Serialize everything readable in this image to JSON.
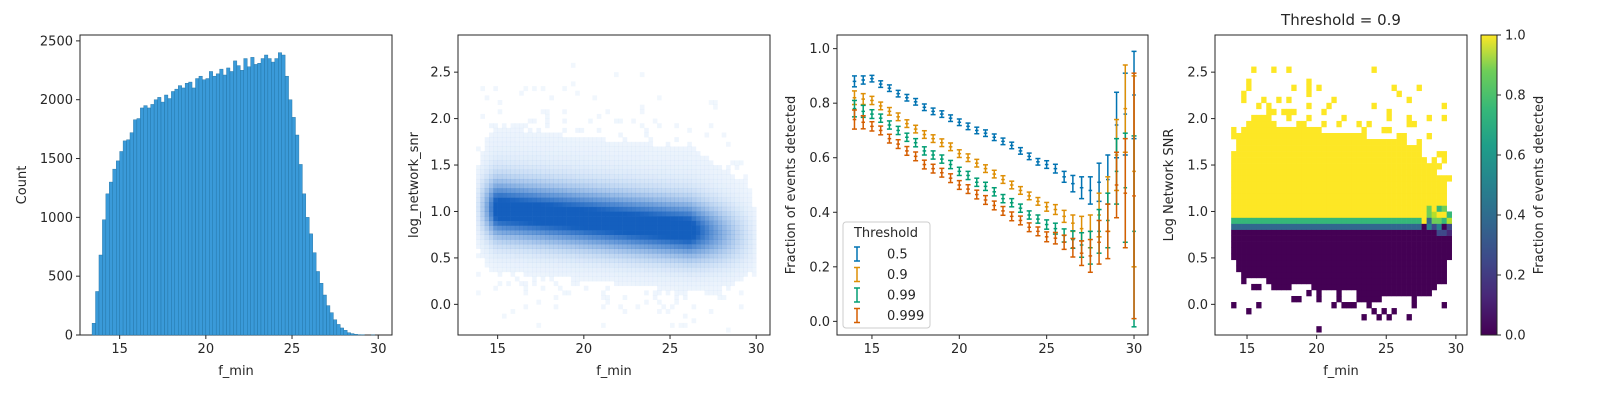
{
  "chart_data": [
    {
      "type": "bar",
      "title": "",
      "xlabel": "f_min",
      "ylabel": "Count",
      "xlim": [
        12.7,
        30.8
      ],
      "ylim": [
        0,
        2550
      ],
      "xticks": [
        15,
        20,
        25,
        30
      ],
      "yticks": [
        0,
        500,
        1000,
        1500,
        2000,
        2500
      ],
      "color": "#3a9ad9",
      "bin_width": 0.2,
      "x": [
        13.5,
        13.7,
        13.9,
        14.1,
        14.3,
        14.5,
        14.7,
        14.9,
        15.1,
        15.3,
        15.5,
        15.7,
        15.9,
        16.1,
        16.3,
        16.5,
        16.7,
        16.9,
        17.1,
        17.3,
        17.5,
        17.7,
        17.9,
        18.1,
        18.3,
        18.5,
        18.7,
        18.9,
        19.1,
        19.3,
        19.5,
        19.7,
        19.9,
        20.1,
        20.3,
        20.5,
        20.7,
        20.9,
        21.1,
        21.3,
        21.5,
        21.7,
        21.9,
        22.1,
        22.3,
        22.5,
        22.7,
        22.9,
        23.1,
        23.3,
        23.5,
        23.7,
        23.9,
        24.1,
        24.3,
        24.5,
        24.7,
        24.9,
        25.1,
        25.3,
        25.5,
        25.7,
        25.9,
        26.1,
        26.3,
        26.5,
        26.7,
        26.9,
        27.1,
        27.3,
        27.5,
        27.7,
        27.9,
        28.1,
        28.3,
        28.5,
        28.7,
        28.9,
        29.1,
        29.3,
        29.5,
        29.7,
        29.9
      ],
      "values": [
        100,
        370,
        680,
        980,
        1200,
        1300,
        1410,
        1480,
        1560,
        1650,
        1660,
        1720,
        1830,
        1840,
        1930,
        1950,
        1930,
        1960,
        2000,
        2020,
        1980,
        2040,
        2010,
        2070,
        2090,
        2120,
        2100,
        2140,
        2150,
        2100,
        2180,
        2200,
        2170,
        2180,
        2240,
        2200,
        2220,
        2260,
        2210,
        2270,
        2240,
        2330,
        2290,
        2250,
        2350,
        2280,
        2360,
        2300,
        2310,
        2350,
        2380,
        2350,
        2320,
        2350,
        2400,
        2380,
        2200,
        2000,
        1850,
        1700,
        1450,
        1200,
        1000,
        860,
        700,
        540,
        440,
        340,
        250,
        190,
        130,
        90,
        60,
        40,
        20,
        12,
        6,
        3,
        2,
        0,
        0,
        1,
        0
      ]
    },
    {
      "type": "heatmap",
      "title": "",
      "xlabel": "f_min",
      "ylabel": "log_network_snr",
      "xlim": [
        12.7,
        30.8
      ],
      "ylim": [
        -0.33,
        2.9
      ],
      "xticks": [
        15,
        20,
        25,
        30
      ],
      "yticks": [
        0.0,
        0.5,
        1.0,
        1.5,
        2.0,
        2.5
      ],
      "colormap": "light-to-dark blue",
      "density_center": [
        19.5,
        0.9
      ],
      "density_extent": {
        "f_min": [
          13.5,
          30
        ],
        "log_network_snr": [
          -0.3,
          2.9
        ]
      }
    },
    {
      "type": "line",
      "title": "",
      "xlabel": "",
      "ylabel": "Fraction of events detected",
      "xlim": [
        13.0,
        30.8
      ],
      "ylim": [
        -0.05,
        1.05
      ],
      "xticks": [
        15,
        20,
        25,
        30
      ],
      "yticks": [
        0.0,
        0.2,
        0.4,
        0.6,
        0.8,
        1.0
      ],
      "x_tick_display": [
        "15",
        "20",
        "25",
        "30"
      ],
      "legend_title": "Threshold",
      "legend_loc": "lower-left",
      "x": [
        14.0,
        14.5,
        15.0,
        15.5,
        16.0,
        16.5,
        17.0,
        17.5,
        18.0,
        18.5,
        19.0,
        19.5,
        20.0,
        20.5,
        21.0,
        21.5,
        22.0,
        22.5,
        23.0,
        23.5,
        24.0,
        24.5,
        25.0,
        25.5,
        26.0,
        26.5,
        27.0,
        27.5,
        28.0,
        28.5,
        29.0,
        29.5,
        30.0
      ],
      "series": [
        {
          "name": "0.5",
          "color": "#0173b2",
          "values": [
            0.88,
            0.885,
            0.89,
            0.87,
            0.855,
            0.835,
            0.82,
            0.805,
            0.785,
            0.77,
            0.76,
            0.745,
            0.73,
            0.715,
            0.7,
            0.69,
            0.675,
            0.66,
            0.645,
            0.625,
            0.605,
            0.585,
            0.575,
            0.56,
            0.53,
            0.505,
            0.49,
            0.48,
            0.51,
            0.52,
            0.72,
            0.76,
            0.83
          ],
          "err": [
            0.02,
            0.015,
            0.012,
            0.012,
            0.012,
            0.012,
            0.012,
            0.012,
            0.012,
            0.012,
            0.012,
            0.012,
            0.012,
            0.012,
            0.012,
            0.012,
            0.012,
            0.012,
            0.012,
            0.012,
            0.012,
            0.012,
            0.014,
            0.016,
            0.02,
            0.03,
            0.04,
            0.05,
            0.07,
            0.09,
            0.12,
            0.15,
            0.16
          ]
        },
        {
          "name": "0.9",
          "color": "#de8f05",
          "values": [
            0.82,
            0.815,
            0.81,
            0.79,
            0.77,
            0.75,
            0.725,
            0.705,
            0.685,
            0.67,
            0.655,
            0.64,
            0.615,
            0.6,
            0.58,
            0.56,
            0.54,
            0.52,
            0.5,
            0.48,
            0.46,
            0.44,
            0.42,
            0.41,
            0.385,
            0.36,
            0.34,
            0.33,
            0.39,
            0.43,
            0.61,
            0.78,
            0.55
          ],
          "err": [
            0.025,
            0.02,
            0.015,
            0.014,
            0.014,
            0.014,
            0.014,
            0.014,
            0.014,
            0.014,
            0.014,
            0.014,
            0.014,
            0.014,
            0.014,
            0.014,
            0.014,
            0.014,
            0.014,
            0.014,
            0.014,
            0.014,
            0.016,
            0.018,
            0.022,
            0.03,
            0.045,
            0.06,
            0.08,
            0.1,
            0.13,
            0.16,
            0.35
          ]
        },
        {
          "name": "0.99",
          "color": "#029e73",
          "values": [
            0.78,
            0.77,
            0.76,
            0.745,
            0.72,
            0.7,
            0.675,
            0.655,
            0.625,
            0.61,
            0.595,
            0.575,
            0.55,
            0.535,
            0.51,
            0.495,
            0.475,
            0.45,
            0.435,
            0.415,
            0.39,
            0.375,
            0.355,
            0.34,
            0.315,
            0.3,
            0.28,
            0.27,
            0.33,
            0.37,
            0.55,
            0.49,
            0.33
          ],
          "err": [
            0.03,
            0.022,
            0.016,
            0.015,
            0.015,
            0.015,
            0.015,
            0.015,
            0.015,
            0.015,
            0.015,
            0.015,
            0.015,
            0.015,
            0.015,
            0.015,
            0.015,
            0.015,
            0.015,
            0.015,
            0.015,
            0.015,
            0.017,
            0.02,
            0.024,
            0.032,
            0.045,
            0.06,
            0.08,
            0.1,
            0.12,
            0.2,
            0.35
          ]
        },
        {
          "name": "0.999",
          "color": "#d55e00",
          "values": [
            0.74,
            0.73,
            0.715,
            0.7,
            0.67,
            0.65,
            0.625,
            0.605,
            0.575,
            0.56,
            0.545,
            0.525,
            0.5,
            0.485,
            0.465,
            0.445,
            0.425,
            0.405,
            0.385,
            0.37,
            0.345,
            0.33,
            0.31,
            0.305,
            0.29,
            0.27,
            0.25,
            0.24,
            0.29,
            0.33,
            0.5,
            0.47,
            0.46
          ],
          "err": [
            0.035,
            0.024,
            0.017,
            0.016,
            0.016,
            0.016,
            0.016,
            0.016,
            0.016,
            0.016,
            0.016,
            0.016,
            0.016,
            0.016,
            0.016,
            0.016,
            0.016,
            0.016,
            0.016,
            0.016,
            0.016,
            0.016,
            0.018,
            0.021,
            0.026,
            0.034,
            0.045,
            0.06,
            0.08,
            0.1,
            0.12,
            0.2,
            0.45
          ]
        }
      ]
    },
    {
      "type": "heatmap",
      "title": "Threshold = 0.9",
      "xlabel": "f_min",
      "ylabel": "Log Network SNR",
      "xlim": [
        12.7,
        30.8
      ],
      "ylim": [
        -0.33,
        2.9
      ],
      "xticks": [
        15,
        20,
        25,
        30
      ],
      "yticks": [
        0.0,
        0.5,
        1.0,
        1.5,
        2.0,
        2.5
      ],
      "colormap": "viridis",
      "colorbar_label": "Fraction of events detected",
      "colorbar_range": [
        0.0,
        1.0
      ],
      "colorbar_ticks": [
        0.0,
        0.2,
        0.4,
        0.6,
        0.8,
        1.0
      ],
      "transition_log_snr": [
        0.75,
        0.92
      ]
    }
  ]
}
